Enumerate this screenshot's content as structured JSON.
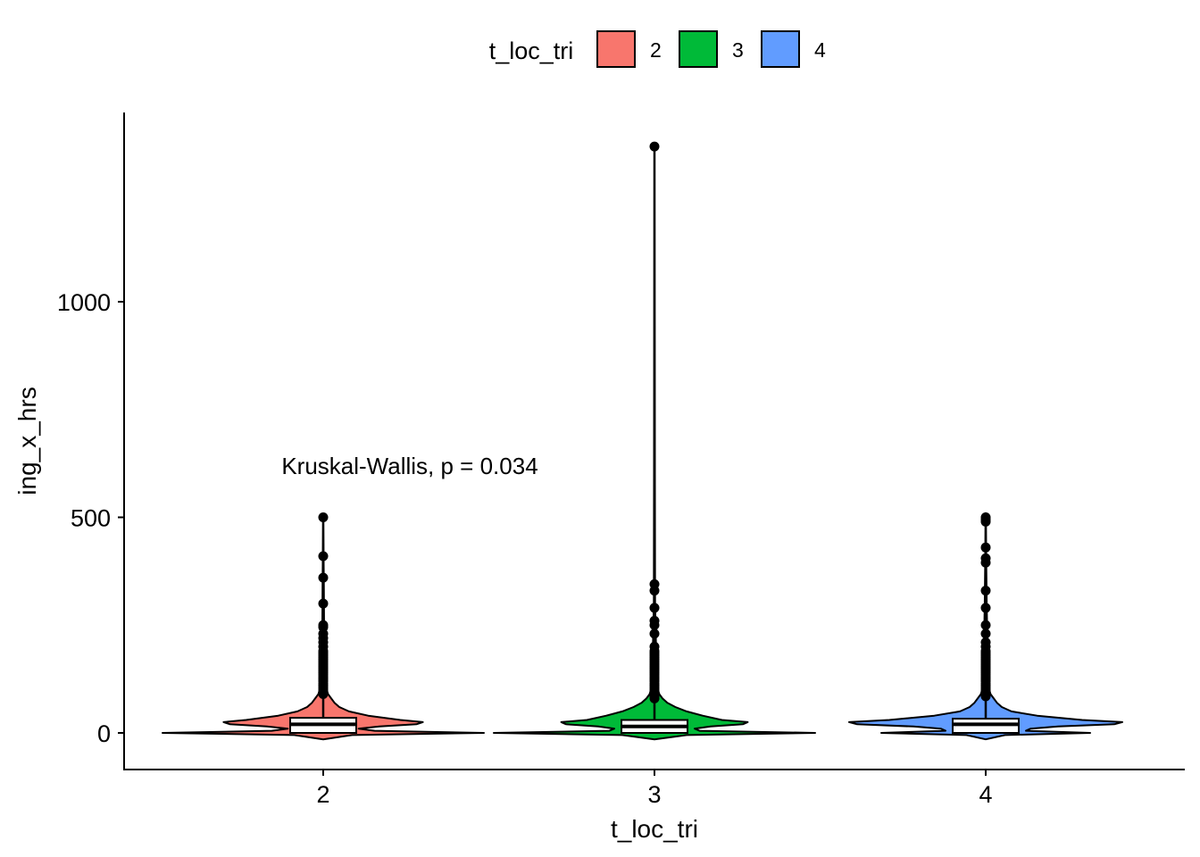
{
  "chart_data": {
    "type": "violin",
    "title": "",
    "xlabel": "t_loc_tri",
    "ylabel": "ing_x_hrs",
    "ylim": [
      -80,
      1420
    ],
    "yticks": [
      0,
      500,
      1000
    ],
    "categories": [
      "2",
      "3",
      "4"
    ],
    "legend": {
      "title": "t_loc_tri",
      "position": "top",
      "entries": [
        {
          "label": "2",
          "color": "#F8766D"
        },
        {
          "label": "3",
          "color": "#00BA38"
        },
        {
          "label": "4",
          "color": "#619CFF"
        }
      ]
    },
    "annotation": "Kruskal-Wallis, p = 0.034",
    "grid": false,
    "series": [
      {
        "category": "2",
        "color": "#F8766D",
        "density": [
          [
            -15,
            0.0
          ],
          [
            -5,
            0.18
          ],
          [
            0,
            1.0
          ],
          [
            5,
            0.32
          ],
          [
            10,
            0.22
          ],
          [
            15,
            0.35
          ],
          [
            20,
            0.58
          ],
          [
            25,
            0.62
          ],
          [
            30,
            0.48
          ],
          [
            40,
            0.28
          ],
          [
            50,
            0.16
          ],
          [
            60,
            0.1
          ],
          [
            70,
            0.07
          ],
          [
            80,
            0.05
          ],
          [
            90,
            0.03
          ],
          [
            110,
            0.015
          ],
          [
            200,
            0.006
          ],
          [
            350,
            0.004
          ],
          [
            500,
            0.0
          ]
        ],
        "box": {
          "q1": 0,
          "median": 20,
          "q3": 35,
          "whisker_low": 0,
          "whisker_high": 85
        },
        "outliers": [
          90,
          95,
          100,
          105,
          110,
          115,
          120,
          125,
          130,
          135,
          140,
          145,
          150,
          155,
          160,
          165,
          170,
          175,
          180,
          185,
          190,
          200,
          210,
          220,
          230,
          245,
          250,
          300,
          360,
          410,
          500
        ]
      },
      {
        "category": "3",
        "color": "#00BA38",
        "density": [
          [
            -15,
            0.0
          ],
          [
            -5,
            0.2
          ],
          [
            0,
            1.0
          ],
          [
            5,
            0.28
          ],
          [
            10,
            0.25
          ],
          [
            15,
            0.35
          ],
          [
            20,
            0.55
          ],
          [
            25,
            0.58
          ],
          [
            30,
            0.42
          ],
          [
            40,
            0.3
          ],
          [
            50,
            0.2
          ],
          [
            60,
            0.13
          ],
          [
            70,
            0.08
          ],
          [
            80,
            0.05
          ],
          [
            90,
            0.03
          ],
          [
            110,
            0.015
          ],
          [
            300,
            0.004
          ],
          [
            1360,
            0.0
          ]
        ],
        "box": {
          "q1": 0,
          "median": 15,
          "q3": 30,
          "whisker_low": 0,
          "whisker_high": 75
        },
        "outliers": [
          80,
          85,
          90,
          95,
          100,
          105,
          110,
          115,
          120,
          125,
          130,
          135,
          140,
          145,
          150,
          155,
          160,
          165,
          170,
          175,
          180,
          185,
          190,
          200,
          230,
          250,
          260,
          290,
          330,
          345,
          1360
        ]
      },
      {
        "category": "4",
        "color": "#619CFF",
        "density": [
          [
            -15,
            0.0
          ],
          [
            -5,
            0.12
          ],
          [
            0,
            0.65
          ],
          [
            5,
            0.25
          ],
          [
            10,
            0.28
          ],
          [
            15,
            0.45
          ],
          [
            20,
            0.8
          ],
          [
            25,
            0.85
          ],
          [
            30,
            0.6
          ],
          [
            40,
            0.32
          ],
          [
            50,
            0.16
          ],
          [
            60,
            0.1
          ],
          [
            70,
            0.07
          ],
          [
            80,
            0.05
          ],
          [
            90,
            0.03
          ],
          [
            110,
            0.015
          ],
          [
            300,
            0.006
          ],
          [
            510,
            0.0
          ]
        ],
        "box": {
          "q1": 0,
          "median": 20,
          "q3": 33,
          "whisker_low": 0,
          "whisker_high": 80
        },
        "outliers": [
          85,
          90,
          95,
          100,
          105,
          110,
          115,
          120,
          125,
          130,
          135,
          140,
          145,
          150,
          155,
          160,
          165,
          170,
          175,
          180,
          185,
          190,
          200,
          210,
          230,
          250,
          290,
          330,
          395,
          405,
          430,
          490,
          495,
          500
        ]
      }
    ]
  }
}
